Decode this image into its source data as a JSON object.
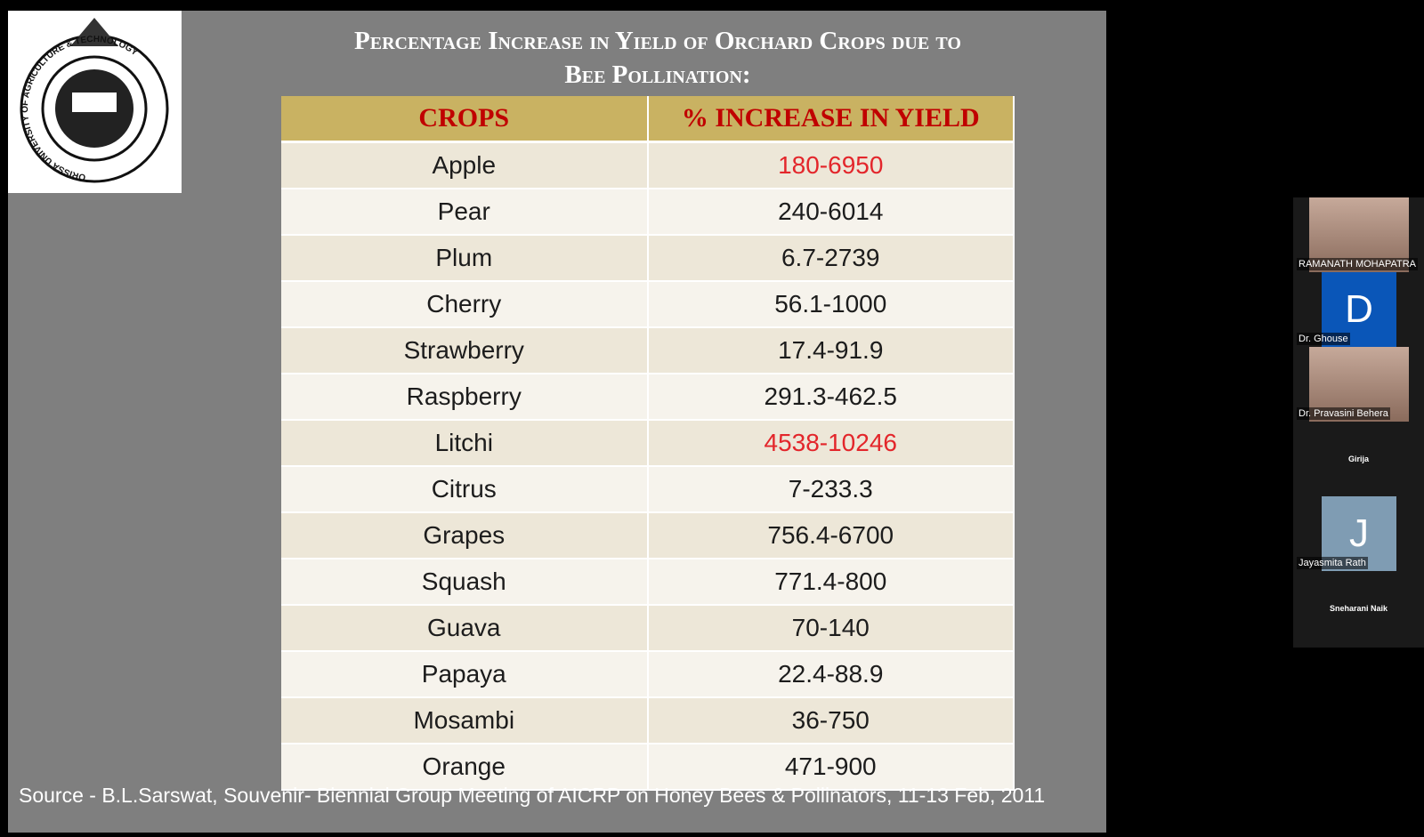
{
  "slide": {
    "title_lines": [
      "Percentage Increase in Yield of Orchard Crops due to",
      "Bee Pollination:"
    ],
    "logo_text": "ORISSA UNIVERSITY OF AGRICULTURE & TECHNOLOGY",
    "table": {
      "header": [
        "CROPS",
        "% INCREASE IN YIELD"
      ],
      "rows": [
        {
          "crop": "Apple",
          "increase": "180-6950",
          "color": "#e3262b"
        },
        {
          "crop": "Pear",
          "increase": "240-6014"
        },
        {
          "crop": "Plum",
          "increase": "6.7-2739"
        },
        {
          "crop": "Cherry",
          "increase": "56.1-1000"
        },
        {
          "crop": "Strawberry",
          "increase": "17.4-91.9"
        },
        {
          "crop": "Raspberry",
          "increase": "291.3-462.5"
        },
        {
          "crop": "Litchi",
          "increase": "4538-10246",
          "color": "#e3262b"
        },
        {
          "crop": "Citrus",
          "increase": "7-233.3"
        },
        {
          "crop": "Grapes",
          "increase": "756.4-6700"
        },
        {
          "crop": "Squash",
          "increase": "771.4-800"
        },
        {
          "crop": "Guava",
          "increase": "70-140"
        },
        {
          "crop": "Papaya",
          "increase": "22.4-88.9"
        },
        {
          "crop": "Mosambi",
          "increase": "36-750"
        },
        {
          "crop": "Orange",
          "increase": "471-900"
        }
      ]
    },
    "source": "Source - B.L.Sarswat, Souvenir- Biennial Group Meeting of AICRP on Honey Bees & Pollinators, 11-13 Feb, 2011"
  },
  "participants": [
    {
      "name": "RAMANATH MOHAPATRA",
      "video": true
    },
    {
      "name": "Dr. Ghouse",
      "initial": "D",
      "avatar_color": "#0a56b8"
    },
    {
      "name": "Dr. Pravasini Behera",
      "video": true
    },
    {
      "name": "Girija"
    },
    {
      "name": "Jayasmita Rath",
      "initial": "J",
      "avatar_color": "#7f9cb3"
    },
    {
      "name": "Sneharani Naik"
    }
  ]
}
